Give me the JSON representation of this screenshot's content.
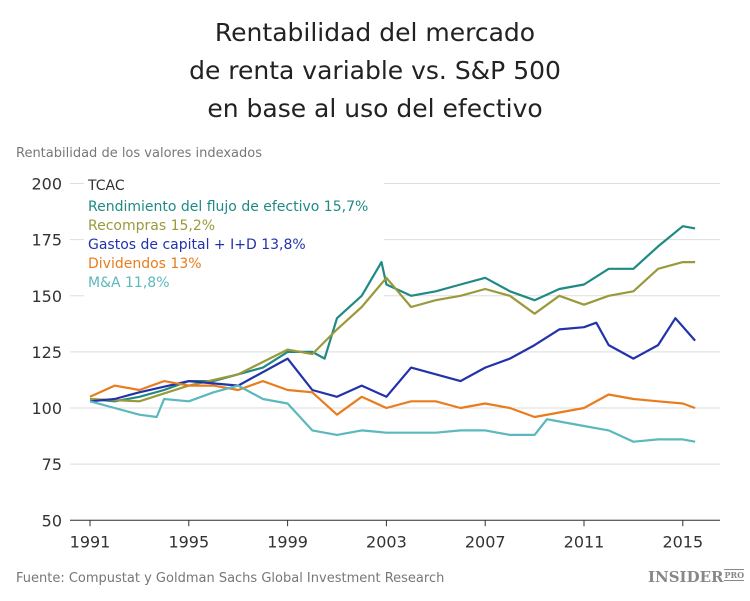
{
  "chart_data": {
    "type": "line",
    "title": [
      "Rentabilidad del mercado",
      "de renta variable vs. S&P 500",
      "en base al uso del efectivo"
    ],
    "ylabel": "Rentabilidad de los valores indexados",
    "legend_title": "TCAC",
    "legend_position": "top-left",
    "ylim": [
      50,
      200
    ],
    "xlim": [
      1990.5,
      2016
    ],
    "yticks": [
      50,
      75,
      100,
      125,
      150,
      175,
      200
    ],
    "xticks": [
      1991,
      1995,
      1999,
      2003,
      2007,
      2011,
      2015
    ],
    "grid": "horizontal",
    "series": [
      {
        "name": "Rendimiento del flujo de efectivo 15,7%",
        "color": "#1f8a84",
        "x": [
          1991,
          1992,
          1993,
          1994,
          1995,
          1996,
          1997,
          1998,
          1999,
          2000,
          2000.5,
          2001,
          2002,
          2002.8,
          2003,
          2004,
          2005,
          2006,
          2007,
          2008,
          2009,
          2010,
          2011,
          2012,
          2013,
          2014,
          2015,
          2015.5
        ],
        "y": [
          104,
          103,
          105,
          108,
          112,
          112,
          115,
          118,
          125,
          125,
          122,
          140,
          150,
          165,
          155,
          150,
          152,
          155,
          158,
          152,
          148,
          153,
          155,
          162,
          162,
          172,
          181,
          180
        ]
      },
      {
        "name": "Recompras 15,2%",
        "color": "#9a9a3c",
        "x": [
          1991,
          1993,
          1995,
          1997,
          1999,
          2000,
          2001,
          2002,
          2003,
          2004,
          2005,
          2006,
          2007,
          2008,
          2009,
          2010,
          2011,
          2012,
          2013,
          2014,
          2015,
          2015.5
        ],
        "y": [
          104,
          103,
          110,
          115,
          126,
          124,
          135,
          145,
          158,
          145,
          148,
          150,
          153,
          150,
          142,
          150,
          146,
          150,
          152,
          162,
          165,
          165
        ]
      },
      {
        "name": "Gastos de capital + I+D 13,8%",
        "color": "#2233aa",
        "x": [
          1991,
          1992,
          1993,
          1995,
          1997,
          1999,
          2000,
          2001,
          2002,
          2003,
          2004,
          2005,
          2006,
          2007,
          2008,
          2009,
          2010,
          2011,
          2011.5,
          2012,
          2013,
          2014,
          2014.7,
          2015.5
        ],
        "y": [
          103,
          104,
          107,
          112,
          110,
          122,
          108,
          105,
          110,
          105,
          118,
          115,
          112,
          118,
          122,
          128,
          135,
          136,
          138,
          128,
          122,
          128,
          140,
          130
        ]
      },
      {
        "name": "Dividendos 13%",
        "color": "#e87c1e",
        "x": [
          1991,
          1992,
          1993,
          1994,
          1995,
          1996,
          1997,
          1998,
          1999,
          2000,
          2001,
          2002,
          2003,
          2004,
          2005,
          2006,
          2007,
          2008,
          2009,
          2010,
          2011,
          2012,
          2013,
          2014,
          2015,
          2015.5
        ],
        "y": [
          105,
          110,
          108,
          112,
          110,
          110,
          108,
          112,
          108,
          107,
          97,
          105,
          100,
          103,
          103,
          100,
          102,
          100,
          96,
          98,
          100,
          106,
          104,
          103,
          102,
          100
        ]
      },
      {
        "name": "M&A 11,8%",
        "color": "#5bb8bc",
        "x": [
          1991,
          1992,
          1993,
          1993.7,
          1994,
          1995,
          1996,
          1997,
          1998,
          1999,
          2000,
          2001,
          2002,
          2003,
          2004,
          2005,
          2006,
          2007,
          2008,
          2009,
          2009.5,
          2010,
          2011,
          2012,
          2013,
          2014,
          2015,
          2015.5
        ],
        "y": [
          103,
          100,
          97,
          96,
          104,
          103,
          107,
          110,
          104,
          102,
          90,
          88,
          90,
          89,
          89,
          89,
          90,
          90,
          88,
          88,
          95,
          94,
          92,
          90,
          85,
          86,
          86,
          85
        ]
      }
    ]
  },
  "source": "Fuente: Compustat y Goldman Sachs Global Investment Research",
  "logo": {
    "main": "INSIDER",
    "sub": "PRO"
  }
}
